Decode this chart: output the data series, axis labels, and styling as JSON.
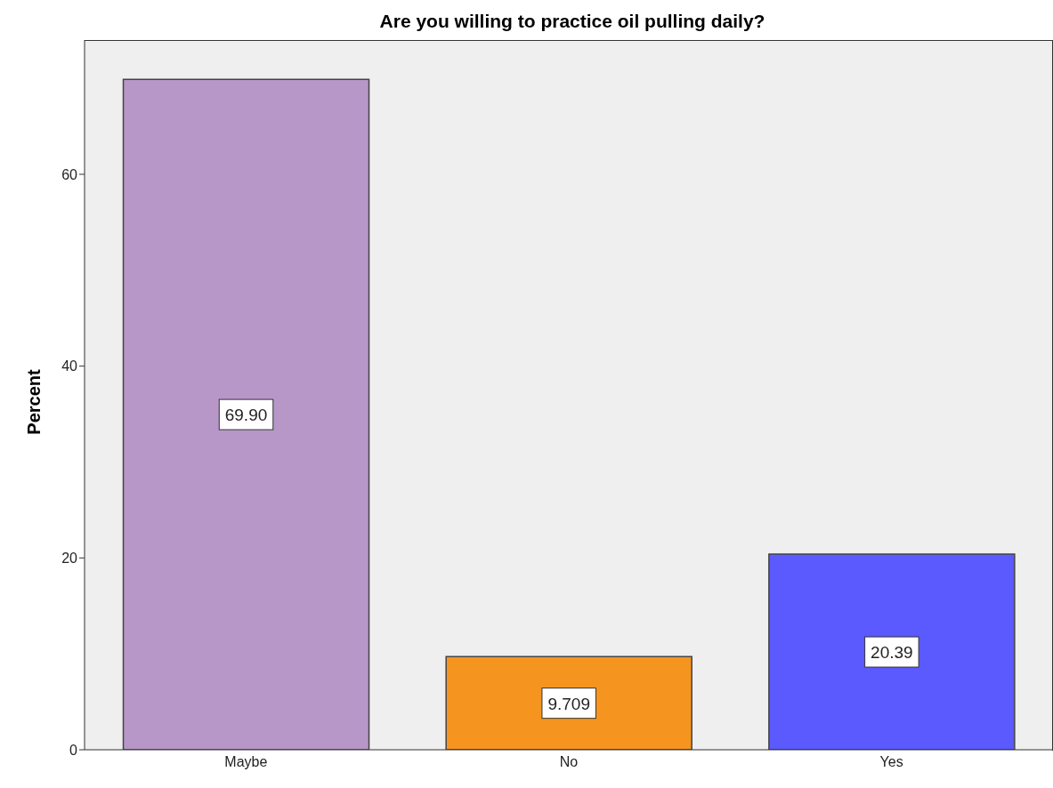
{
  "chart_data": {
    "type": "bar",
    "title": "Are you willing to practice oil pulling daily?",
    "ylabel": "Percent",
    "categories": [
      "Maybe",
      "No",
      "Yes"
    ],
    "values": [
      69.9,
      9.709,
      20.39
    ],
    "value_labels": [
      "69.90",
      "9.709",
      "20.39"
    ],
    "colors": [
      "#b797c8",
      "#f5951f",
      "#5a5afe"
    ],
    "ylim": [
      0,
      74
    ],
    "yticks": [
      0,
      20,
      40,
      60
    ]
  }
}
